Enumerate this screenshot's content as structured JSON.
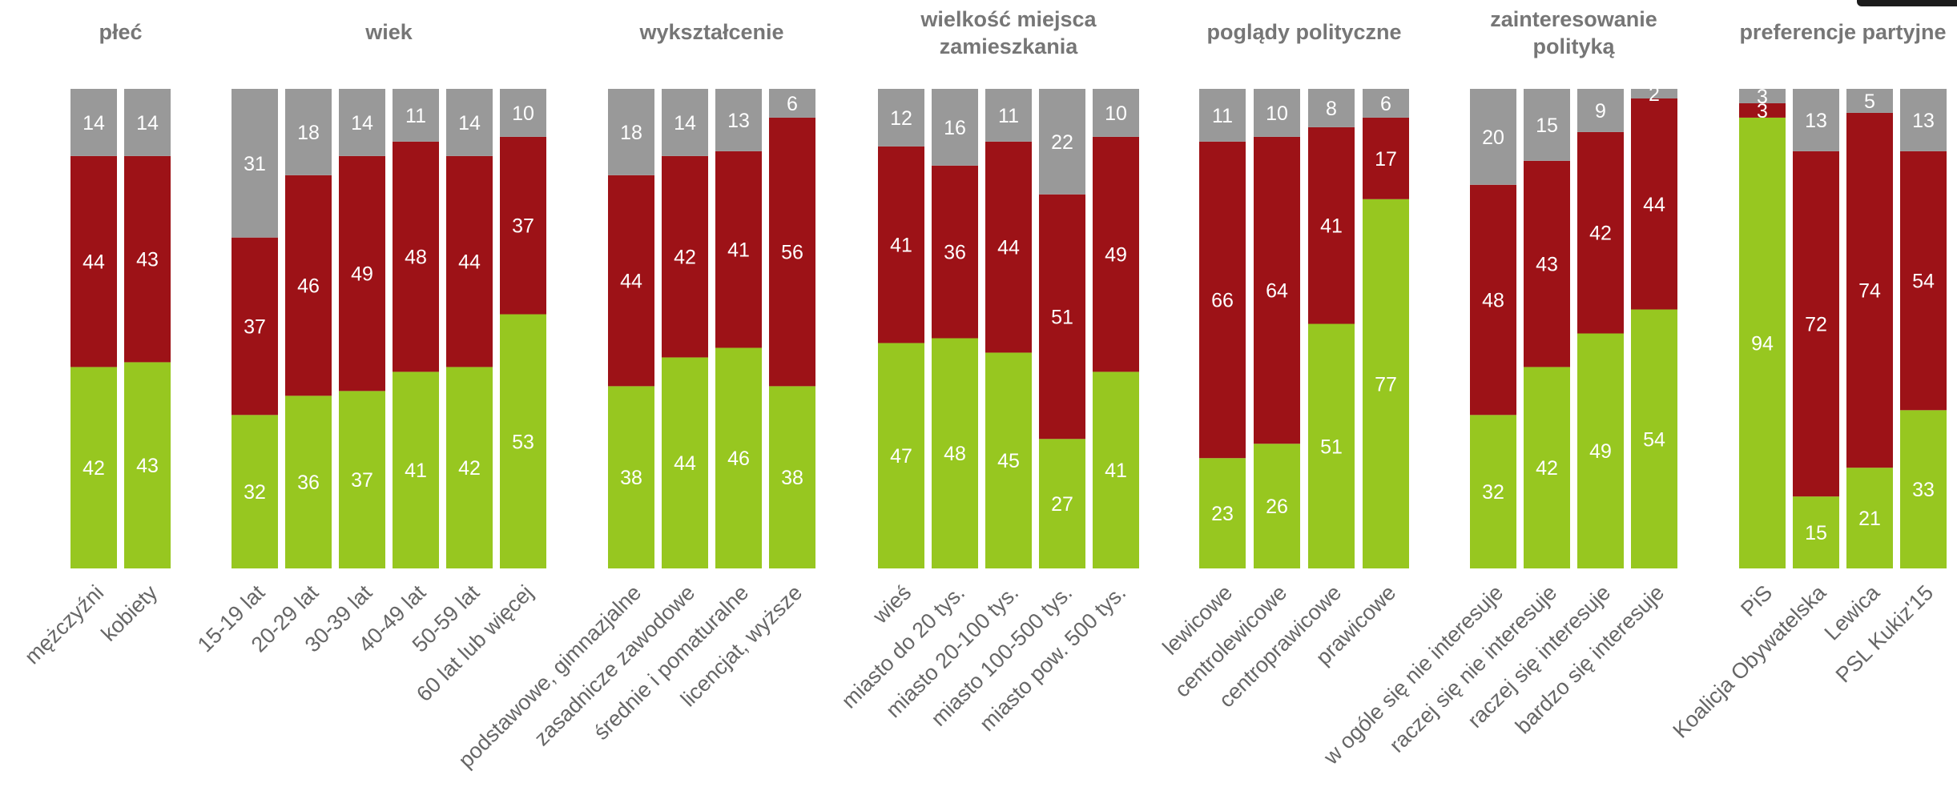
{
  "chart_data": {
    "type": "bar",
    "stacked": true,
    "normalized": true,
    "ylim": [
      0,
      100
    ],
    "grid": false,
    "legend": "none",
    "series_colors": {
      "green": "#97c720",
      "red": "#9d1217",
      "gray": "#999999"
    },
    "groups": [
      {
        "title": [
          "płeć"
        ],
        "bars": [
          {
            "label": "mężczyźni",
            "values": [
              42,
              44,
              14
            ]
          },
          {
            "label": "kobiety",
            "values": [
              43,
              43,
              14
            ]
          }
        ]
      },
      {
        "title": [
          "wiek"
        ],
        "bars": [
          {
            "label": "15-19 lat",
            "values": [
              32,
              37,
              31
            ]
          },
          {
            "label": "20-29 lat",
            "values": [
              36,
              46,
              18
            ]
          },
          {
            "label": "30-39 lat",
            "values": [
              37,
              49,
              14
            ]
          },
          {
            "label": "40-49 lat",
            "values": [
              41,
              48,
              11
            ]
          },
          {
            "label": "50-59 lat",
            "values": [
              42,
              44,
              14
            ]
          },
          {
            "label": "60 lat lub więcej",
            "values": [
              53,
              37,
              10
            ]
          }
        ]
      },
      {
        "title": [
          "wykształcenie"
        ],
        "bars": [
          {
            "label": "podstawowe, gimnazjalne",
            "values": [
              38,
              44,
              18
            ]
          },
          {
            "label": "zasadnicze zawodowe",
            "values": [
              44,
              42,
              14
            ]
          },
          {
            "label": "średnie i pomaturalne",
            "values": [
              46,
              41,
              13
            ]
          },
          {
            "label": "licencjat, wyższe",
            "values": [
              38,
              56,
              6
            ]
          }
        ]
      },
      {
        "title": [
          "wielkość miejsca",
          "zamieszkania"
        ],
        "bars": [
          {
            "label": "wieś",
            "values": [
              47,
              41,
              12
            ]
          },
          {
            "label": "miasto do 20 tys.",
            "values": [
              48,
              36,
              16
            ]
          },
          {
            "label": "miasto 20-100 tys.",
            "values": [
              45,
              44,
              11
            ]
          },
          {
            "label": "miasto 100-500 tys.",
            "values": [
              27,
              51,
              22
            ]
          },
          {
            "label": "miasto pow. 500 tys.",
            "values": [
              41,
              49,
              10
            ]
          }
        ]
      },
      {
        "title": [
          "poglądy polityczne"
        ],
        "bars": [
          {
            "label": "lewicowe",
            "values": [
              23,
              66,
              11
            ]
          },
          {
            "label": "centrolewicowe",
            "values": [
              26,
              64,
              10
            ]
          },
          {
            "label": "centroprawicowe",
            "values": [
              51,
              41,
              8
            ]
          },
          {
            "label": "prawicowe",
            "values": [
              77,
              17,
              6
            ]
          }
        ]
      },
      {
        "title": [
          "zainteresowanie",
          "polityką"
        ],
        "bars": [
          {
            "label": "w ogóle się nie interesuje",
            "values": [
              32,
              48,
              20
            ]
          },
          {
            "label": "raczej się nie interesuje",
            "values": [
              42,
              43,
              15
            ]
          },
          {
            "label": "raczej się interesuje",
            "values": [
              49,
              42,
              9
            ]
          },
          {
            "label": "bardzo się interesuje",
            "values": [
              54,
              44,
              2
            ]
          }
        ]
      },
      {
        "title": [
          "preferencje partyjne"
        ],
        "bars": [
          {
            "label": "PiS",
            "values": [
              94,
              3,
              3
            ]
          },
          {
            "label": "Koalicja Obywatelska",
            "values": [
              15,
              72,
              13
            ]
          },
          {
            "label": "Lewica",
            "values": [
              21,
              74,
              5
            ]
          },
          {
            "label": "PSL Kukiz'15",
            "values": [
              33,
              54,
              13
            ]
          }
        ]
      }
    ]
  }
}
